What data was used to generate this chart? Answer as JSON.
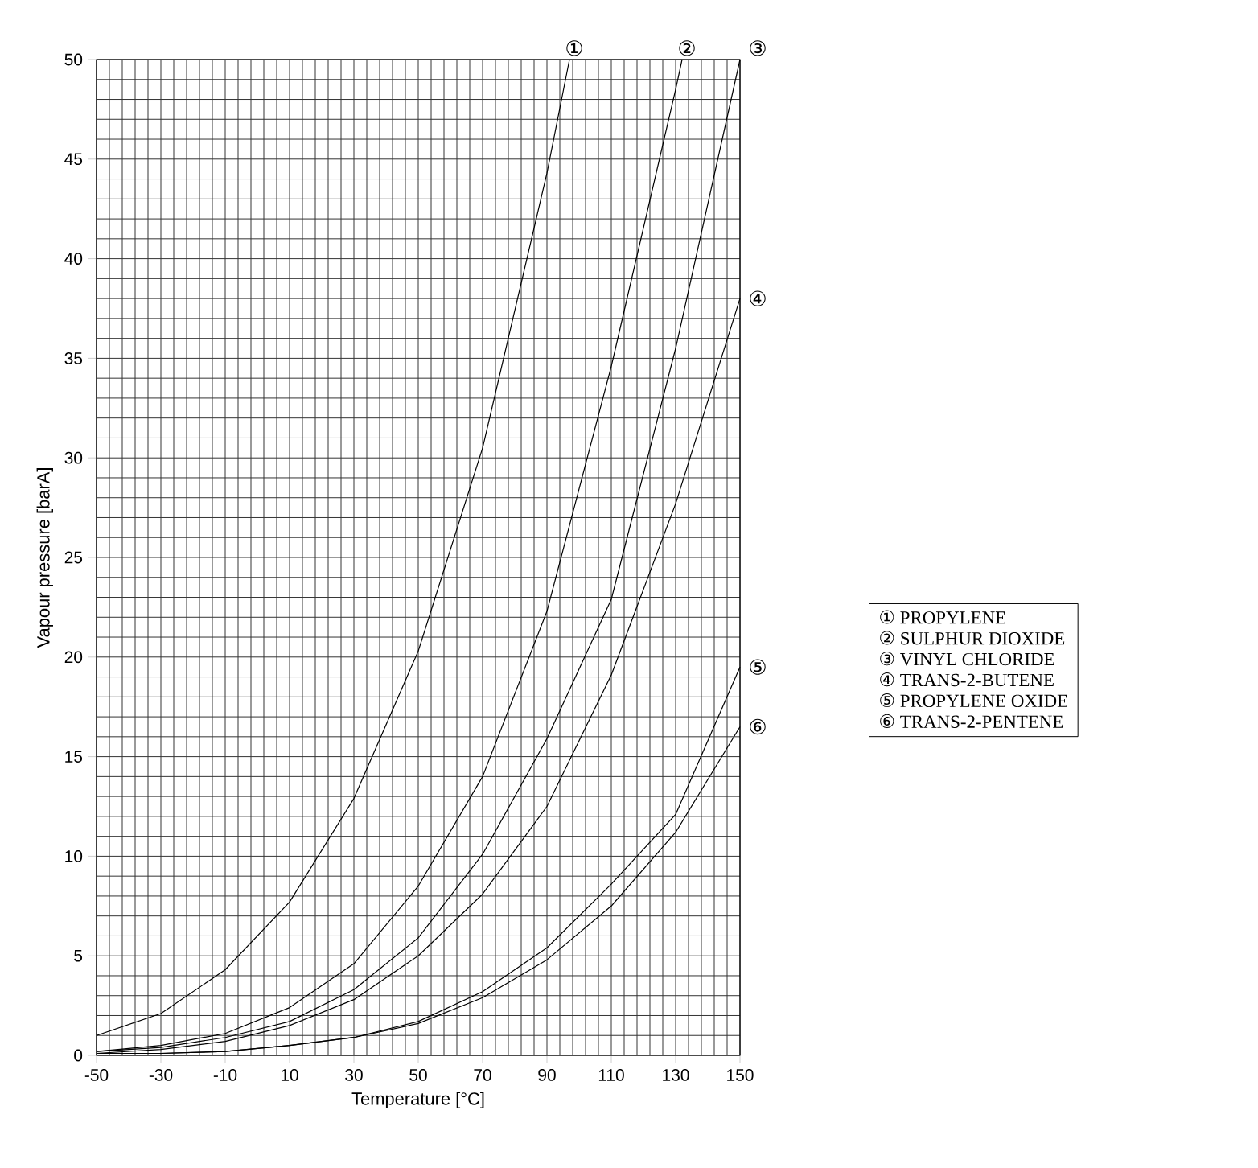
{
  "chart_data": {
    "type": "line",
    "xlabel": "Temperature [°C]",
    "ylabel": "Vapour pressure [barA]",
    "xlim": [
      -50,
      150
    ],
    "xticks": [
      -50,
      -30,
      -10,
      10,
      30,
      50,
      70,
      90,
      110,
      130,
      150
    ],
    "ylim": [
      0,
      50
    ],
    "yticks": [
      0,
      5,
      10,
      15,
      20,
      25,
      30,
      35,
      40,
      45,
      50
    ],
    "grid": true,
    "legend": "right",
    "series": [
      {
        "name": "① PROPYLENE",
        "color": "#000000",
        "x": [
          -50,
          -30,
          -10,
          10,
          30,
          50,
          70,
          90,
          97
        ],
        "values": [
          1.0,
          2.1,
          4.3,
          7.7,
          12.9,
          20.3,
          30.5,
          44.3,
          50
        ]
      },
      {
        "name": "② SULPHUR DIOXIDE",
        "color": "#000000",
        "x": [
          -50,
          -30,
          -10,
          10,
          30,
          50,
          70,
          90,
          110,
          130,
          132
        ],
        "values": [
          0.2,
          0.5,
          1.1,
          2.4,
          4.6,
          8.5,
          14.0,
          22.3,
          34.6,
          48.5,
          50
        ]
      },
      {
        "name": "③ VINYL CHLORIDE",
        "color": "#000000",
        "x": [
          -50,
          -30,
          -10,
          10,
          30,
          50,
          70,
          90,
          110,
          130,
          150
        ],
        "values": [
          0.2,
          0.4,
          0.9,
          1.7,
          3.3,
          5.9,
          10.1,
          15.9,
          22.9,
          35.5,
          50
        ]
      },
      {
        "name": "④ TRANS-2-BUTENE",
        "color": "#000000",
        "x": [
          -50,
          -30,
          -10,
          10,
          30,
          50,
          70,
          90,
          110,
          130,
          150
        ],
        "values": [
          0.1,
          0.3,
          0.7,
          1.5,
          2.8,
          5.0,
          8.1,
          12.5,
          19.1,
          27.7,
          38.0
        ]
      },
      {
        "name": "⑤ PROPYLENE OXIDE",
        "color": "#000000",
        "x": [
          -50,
          -30,
          -10,
          10,
          30,
          50,
          70,
          90,
          110,
          130,
          150
        ],
        "values": [
          0.1,
          0.1,
          0.2,
          0.5,
          0.9,
          1.7,
          3.2,
          5.4,
          8.6,
          12.1,
          19.5
        ]
      },
      {
        "name": "⑥ TRANS-2-PENTENE",
        "color": "#000000",
        "x": [
          -50,
          -30,
          -10,
          10,
          30,
          50,
          70,
          90,
          110,
          130,
          150
        ],
        "values": [
          0.1,
          0.1,
          0.2,
          0.5,
          0.9,
          1.6,
          2.9,
          4.8,
          7.5,
          11.2,
          16.5
        ]
      }
    ],
    "annotations": [
      {
        "text": "①",
        "x": 97,
        "y": 50
      },
      {
        "text": "②",
        "x": 132,
        "y": 50
      },
      {
        "text": "③",
        "x": 150,
        "y": 50
      },
      {
        "text": "④",
        "x": 150,
        "y": 38.0
      },
      {
        "text": "⑤",
        "x": 150,
        "y": 19.5
      },
      {
        "text": "⑥",
        "x": 150,
        "y": 16.5
      }
    ]
  }
}
